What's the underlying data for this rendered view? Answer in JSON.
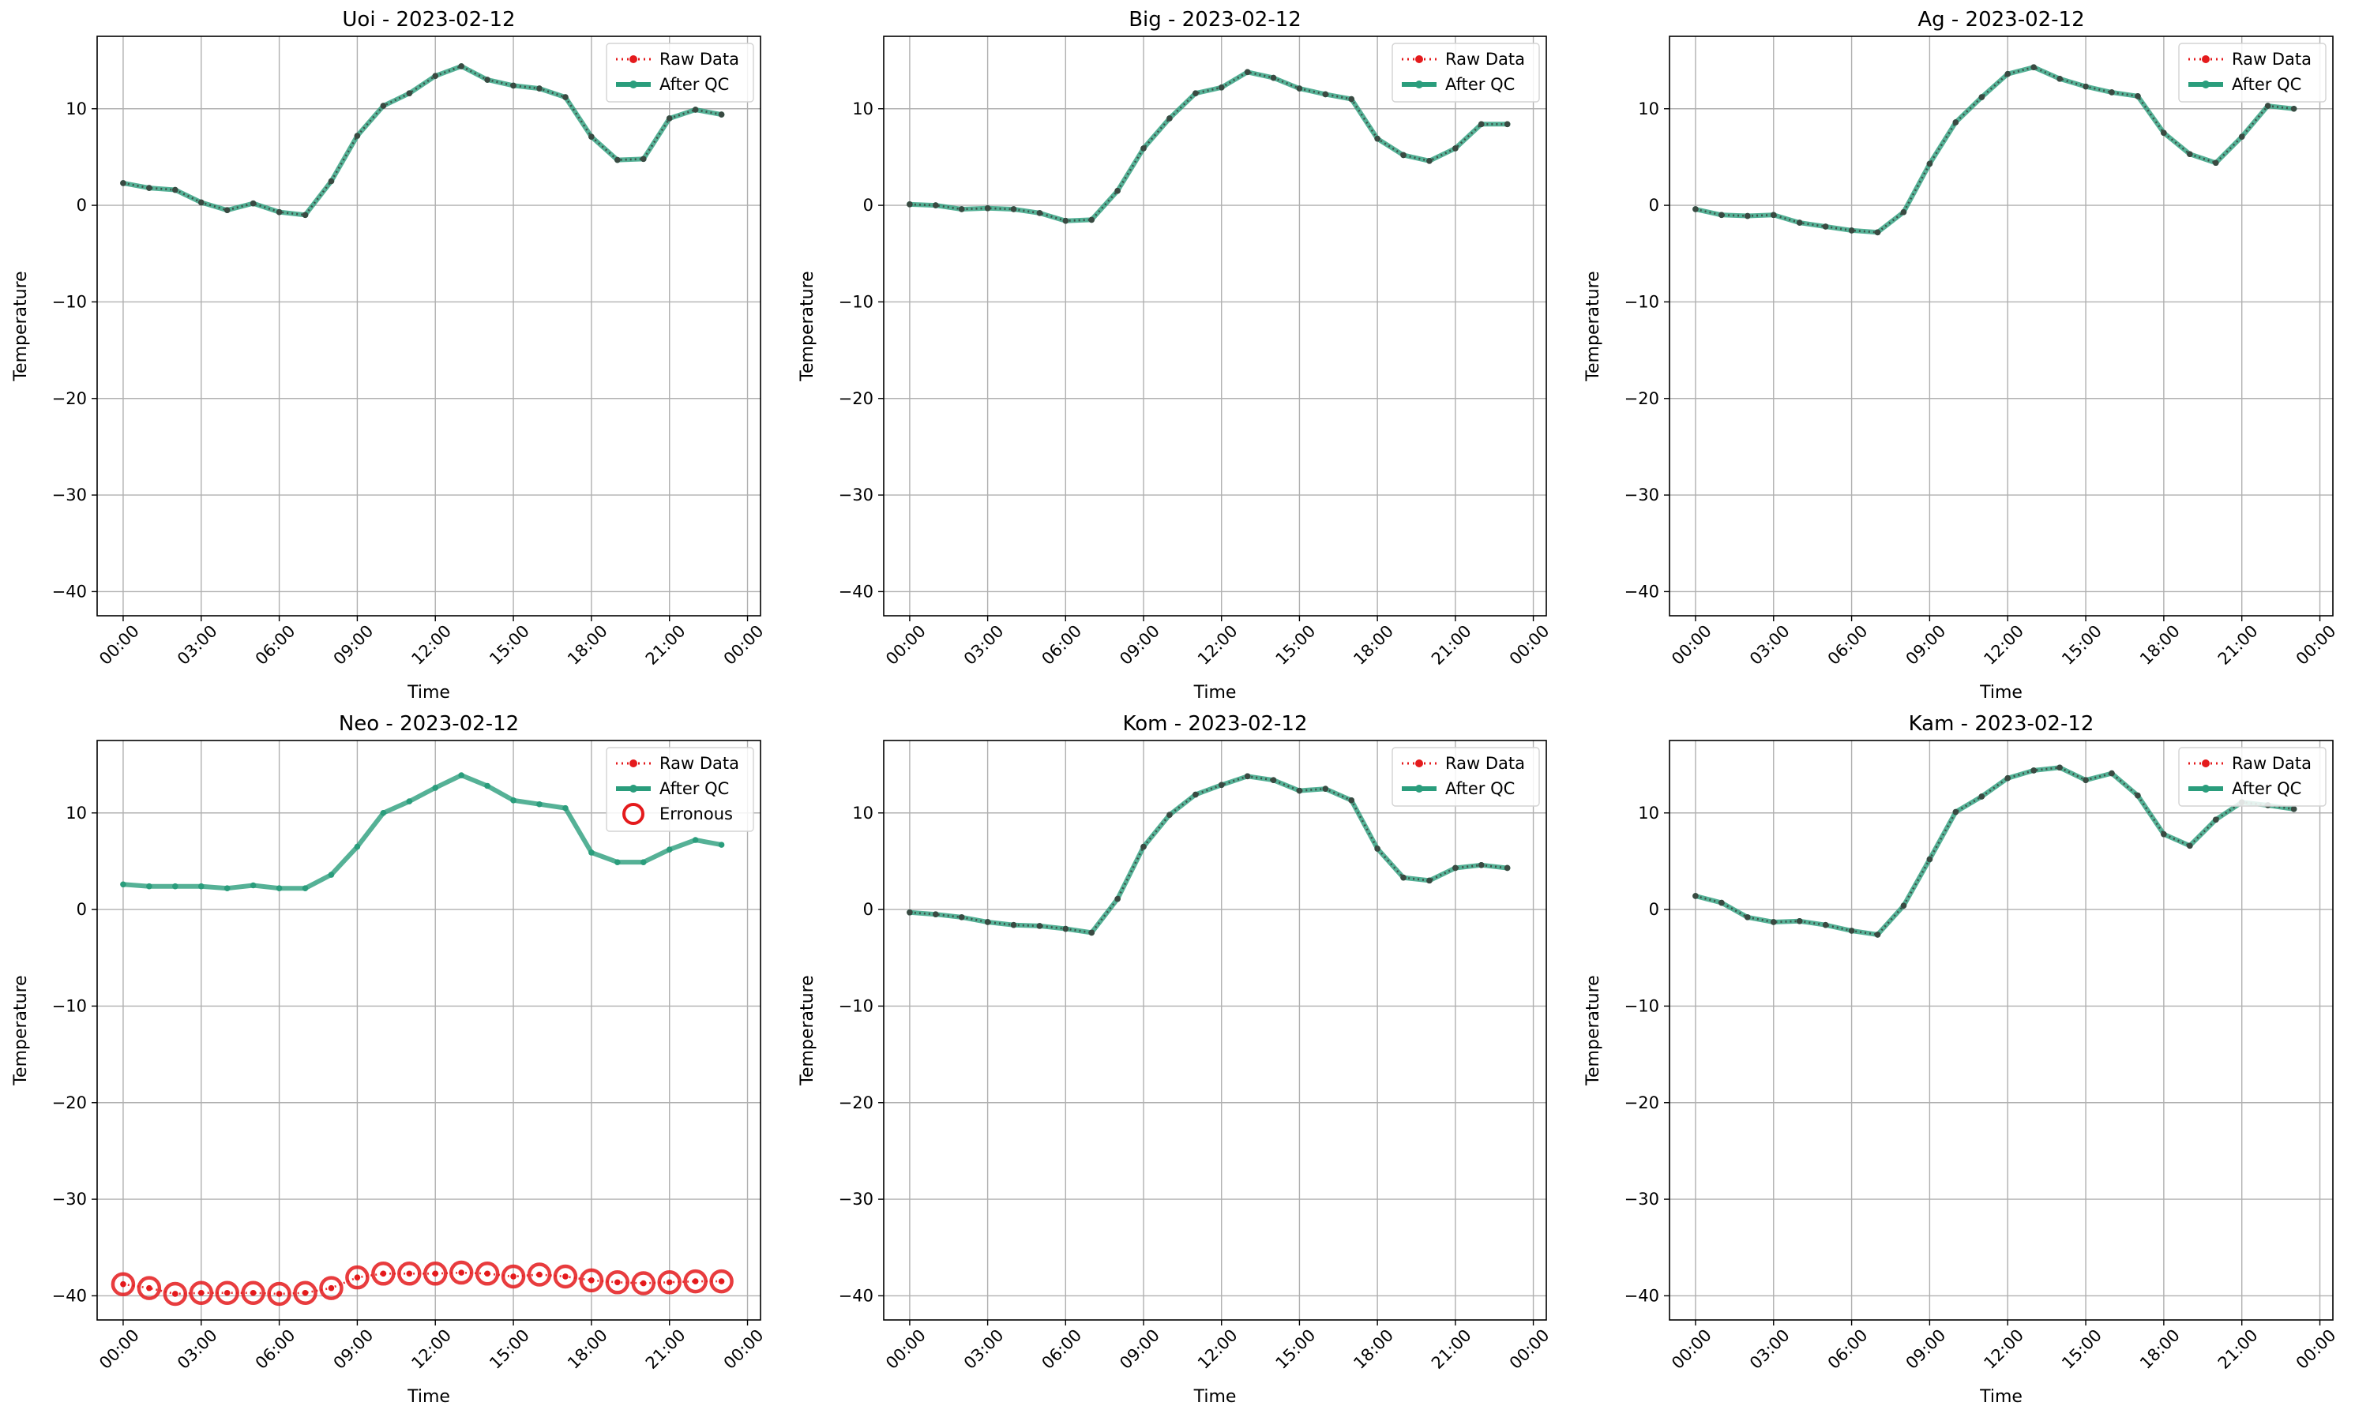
{
  "figure": {
    "x_tick_labels": [
      "00:00",
      "03:00",
      "06:00",
      "09:00",
      "12:00",
      "15:00",
      "18:00",
      "21:00",
      "00:00"
    ],
    "y_ticks": [
      10,
      0,
      -10,
      -20,
      -30,
      -40
    ],
    "y_tick_labels": [
      "10",
      "0",
      "−10",
      "−20",
      "−30",
      "−40"
    ],
    "xlabel": "Time",
    "ylabel": "Temperature",
    "colors": {
      "raw": "#e41a1c",
      "after_qc": "#2a9d7c",
      "raw_marker_dark": "#3a4a42",
      "grid": "#b0b0b0"
    }
  },
  "chart_data": [
    {
      "type": "line",
      "title": "Uoi - 2023-02-12",
      "xlabel": "Time",
      "ylabel": "Temperature",
      "x": [
        "00:00",
        "01:00",
        "02:00",
        "03:00",
        "04:00",
        "05:00",
        "06:00",
        "07:00",
        "08:00",
        "09:00",
        "10:00",
        "11:00",
        "12:00",
        "13:00",
        "14:00",
        "15:00",
        "16:00",
        "17:00",
        "18:00",
        "19:00",
        "20:00",
        "21:00",
        "22:00",
        "23:00"
      ],
      "xlim": [
        "2023-02-11 23:00",
        "2023-02-13 00:30"
      ],
      "ylim": [
        -42.5,
        17.5
      ],
      "grid": true,
      "legend": {
        "position": "top-right",
        "entries": [
          "Raw Data",
          "After QC"
        ]
      },
      "series": [
        {
          "name": "Raw Data",
          "values": [
            2.3,
            1.8,
            1.6,
            0.3,
            -0.5,
            0.2,
            -0.7,
            -1.0,
            2.5,
            7.2,
            10.3,
            11.6,
            13.4,
            14.4,
            13.0,
            12.4,
            12.1,
            11.2,
            7.1,
            4.7,
            4.8,
            9.0,
            9.9,
            9.4
          ]
        },
        {
          "name": "After QC",
          "values": [
            2.3,
            1.8,
            1.6,
            0.3,
            -0.5,
            0.2,
            -0.7,
            -1.0,
            2.5,
            7.2,
            10.3,
            11.6,
            13.4,
            14.4,
            13.0,
            12.4,
            12.1,
            11.2,
            7.1,
            4.7,
            4.8,
            9.0,
            9.9,
            9.4
          ]
        }
      ]
    },
    {
      "type": "line",
      "title": "Big - 2023-02-12",
      "xlabel": "Time",
      "ylabel": "Temperature",
      "x": [
        "00:00",
        "01:00",
        "02:00",
        "03:00",
        "04:00",
        "05:00",
        "06:00",
        "07:00",
        "08:00",
        "09:00",
        "10:00",
        "11:00",
        "12:00",
        "13:00",
        "14:00",
        "15:00",
        "16:00",
        "17:00",
        "18:00",
        "19:00",
        "20:00",
        "21:00",
        "22:00",
        "23:00"
      ],
      "xlim": [
        "2023-02-11 23:00",
        "2023-02-13 00:30"
      ],
      "ylim": [
        -42.5,
        17.5
      ],
      "grid": true,
      "legend": {
        "position": "top-right",
        "entries": [
          "Raw Data",
          "After QC"
        ]
      },
      "series": [
        {
          "name": "Raw Data",
          "values": [
            0.1,
            0.0,
            -0.4,
            -0.3,
            -0.4,
            -0.8,
            -1.6,
            -1.5,
            1.5,
            5.9,
            9.0,
            11.6,
            12.2,
            13.8,
            13.2,
            12.1,
            11.5,
            11.0,
            6.9,
            5.2,
            4.6,
            5.9,
            8.4,
            8.4
          ]
        },
        {
          "name": "After QC",
          "values": [
            0.1,
            0.0,
            -0.4,
            -0.3,
            -0.4,
            -0.8,
            -1.6,
            -1.5,
            1.5,
            5.9,
            9.0,
            11.6,
            12.2,
            13.8,
            13.2,
            12.1,
            11.5,
            11.0,
            6.9,
            5.2,
            4.6,
            5.9,
            8.4,
            8.4
          ]
        }
      ]
    },
    {
      "type": "line",
      "title": "Ag - 2023-02-12",
      "xlabel": "Time",
      "ylabel": "Temperature",
      "x": [
        "00:00",
        "01:00",
        "02:00",
        "03:00",
        "04:00",
        "05:00",
        "06:00",
        "07:00",
        "08:00",
        "09:00",
        "10:00",
        "11:00",
        "12:00",
        "13:00",
        "14:00",
        "15:00",
        "16:00",
        "17:00",
        "18:00",
        "19:00",
        "20:00",
        "21:00",
        "22:00",
        "23:00"
      ],
      "xlim": [
        "2023-02-11 23:00",
        "2023-02-13 00:30"
      ],
      "ylim": [
        -42.5,
        17.5
      ],
      "grid": true,
      "legend": {
        "position": "top-right",
        "entries": [
          "Raw Data",
          "After QC"
        ]
      },
      "series": [
        {
          "name": "Raw Data",
          "values": [
            -0.4,
            -1.0,
            -1.1,
            -1.0,
            -1.8,
            -2.2,
            -2.6,
            -2.8,
            -0.7,
            4.3,
            8.6,
            11.2,
            13.6,
            14.3,
            13.1,
            12.3,
            11.7,
            11.3,
            7.5,
            5.3,
            4.4,
            7.1,
            10.3,
            10.0
          ]
        },
        {
          "name": "After QC",
          "values": [
            -0.4,
            -1.0,
            -1.1,
            -1.0,
            -1.8,
            -2.2,
            -2.6,
            -2.8,
            -0.7,
            4.3,
            8.6,
            11.2,
            13.6,
            14.3,
            13.1,
            12.3,
            11.7,
            11.3,
            7.5,
            5.3,
            4.4,
            7.1,
            10.3,
            10.0
          ]
        }
      ]
    },
    {
      "type": "line",
      "title": "Neo - 2023-02-12",
      "xlabel": "Time",
      "ylabel": "Temperature",
      "x": [
        "00:00",
        "01:00",
        "02:00",
        "03:00",
        "04:00",
        "05:00",
        "06:00",
        "07:00",
        "08:00",
        "09:00",
        "10:00",
        "11:00",
        "12:00",
        "13:00",
        "14:00",
        "15:00",
        "16:00",
        "17:00",
        "18:00",
        "19:00",
        "20:00",
        "21:00",
        "22:00",
        "23:00"
      ],
      "xlim": [
        "2023-02-11 23:00",
        "2023-02-13 00:30"
      ],
      "ylim": [
        -42.5,
        17.5
      ],
      "grid": true,
      "legend": {
        "position": "top-right",
        "entries": [
          "Raw Data",
          "After QC",
          "Erronous"
        ]
      },
      "series": [
        {
          "name": "Raw Data",
          "values": [
            -38.8,
            -39.2,
            -39.8,
            -39.7,
            -39.7,
            -39.7,
            -39.8,
            -39.7,
            -39.2,
            -38.1,
            -37.7,
            -37.7,
            -37.7,
            -37.6,
            -37.7,
            -38.0,
            -37.8,
            -38.0,
            -38.4,
            -38.6,
            -38.7,
            -38.6,
            -38.5,
            -38.5
          ]
        },
        {
          "name": "After QC",
          "values": [
            2.6,
            2.4,
            2.4,
            2.4,
            2.2,
            2.5,
            2.2,
            2.2,
            3.6,
            6.5,
            10.0,
            11.2,
            12.6,
            13.9,
            12.8,
            11.3,
            10.9,
            10.5,
            5.9,
            4.9,
            4.9,
            6.2,
            7.2,
            6.7
          ]
        },
        {
          "name": "Erronous",
          "values": [
            -38.8,
            -39.2,
            -39.8,
            -39.7,
            -39.7,
            -39.7,
            -39.8,
            -39.7,
            -39.2,
            -38.1,
            -37.7,
            -37.7,
            -37.7,
            -37.6,
            -37.7,
            -38.0,
            -37.8,
            -38.0,
            -38.4,
            -38.6,
            -38.7,
            -38.6,
            -38.5,
            -38.5
          ]
        }
      ]
    },
    {
      "type": "line",
      "title": "Kom - 2023-02-12",
      "xlabel": "Time",
      "ylabel": "Temperature",
      "x": [
        "00:00",
        "01:00",
        "02:00",
        "03:00",
        "04:00",
        "05:00",
        "06:00",
        "07:00",
        "08:00",
        "09:00",
        "10:00",
        "11:00",
        "12:00",
        "13:00",
        "14:00",
        "15:00",
        "16:00",
        "17:00",
        "18:00",
        "19:00",
        "20:00",
        "21:00",
        "22:00",
        "23:00"
      ],
      "xlim": [
        "2023-02-11 23:00",
        "2023-02-13 00:30"
      ],
      "ylim": [
        -42.5,
        17.5
      ],
      "grid": true,
      "legend": {
        "position": "top-right",
        "entries": [
          "Raw Data",
          "After QC"
        ]
      },
      "series": [
        {
          "name": "Raw Data",
          "values": [
            -0.3,
            -0.5,
            -0.8,
            -1.3,
            -1.6,
            -1.7,
            -2.0,
            -2.4,
            1.1,
            6.5,
            9.8,
            11.9,
            12.9,
            13.8,
            13.4,
            12.3,
            12.5,
            11.3,
            6.3,
            3.3,
            3.0,
            4.3,
            4.6,
            4.3
          ]
        },
        {
          "name": "After QC",
          "values": [
            -0.3,
            -0.5,
            -0.8,
            -1.3,
            -1.6,
            -1.7,
            -2.0,
            -2.4,
            1.1,
            6.5,
            9.8,
            11.9,
            12.9,
            13.8,
            13.4,
            12.3,
            12.5,
            11.3,
            6.3,
            3.3,
            3.0,
            4.3,
            4.6,
            4.3
          ]
        }
      ]
    },
    {
      "type": "line",
      "title": "Kam - 2023-02-12",
      "xlabel": "Time",
      "ylabel": "Temperature",
      "x": [
        "00:00",
        "01:00",
        "02:00",
        "03:00",
        "04:00",
        "05:00",
        "06:00",
        "07:00",
        "08:00",
        "09:00",
        "10:00",
        "11:00",
        "12:00",
        "13:00",
        "14:00",
        "15:00",
        "16:00",
        "17:00",
        "18:00",
        "19:00",
        "20:00",
        "21:00",
        "22:00",
        "23:00"
      ],
      "xlim": [
        "2023-02-11 23:00",
        "2023-02-13 00:30"
      ],
      "ylim": [
        -42.5,
        17.5
      ],
      "grid": true,
      "legend": {
        "position": "top-right",
        "entries": [
          "Raw Data",
          "After QC"
        ]
      },
      "series": [
        {
          "name": "Raw Data",
          "values": [
            1.4,
            0.7,
            -0.8,
            -1.3,
            -1.2,
            -1.6,
            -2.2,
            -2.6,
            0.4,
            5.2,
            10.1,
            11.7,
            13.6,
            14.4,
            14.7,
            13.4,
            14.1,
            11.8,
            7.8,
            6.6,
            9.3,
            11.1,
            10.8,
            10.4
          ]
        },
        {
          "name": "After QC",
          "values": [
            1.4,
            0.7,
            -0.8,
            -1.3,
            -1.2,
            -1.6,
            -2.2,
            -2.6,
            0.4,
            5.2,
            10.1,
            11.7,
            13.6,
            14.4,
            14.7,
            13.4,
            14.1,
            11.8,
            7.8,
            6.6,
            9.3,
            11.1,
            10.8,
            10.4
          ]
        }
      ]
    }
  ]
}
